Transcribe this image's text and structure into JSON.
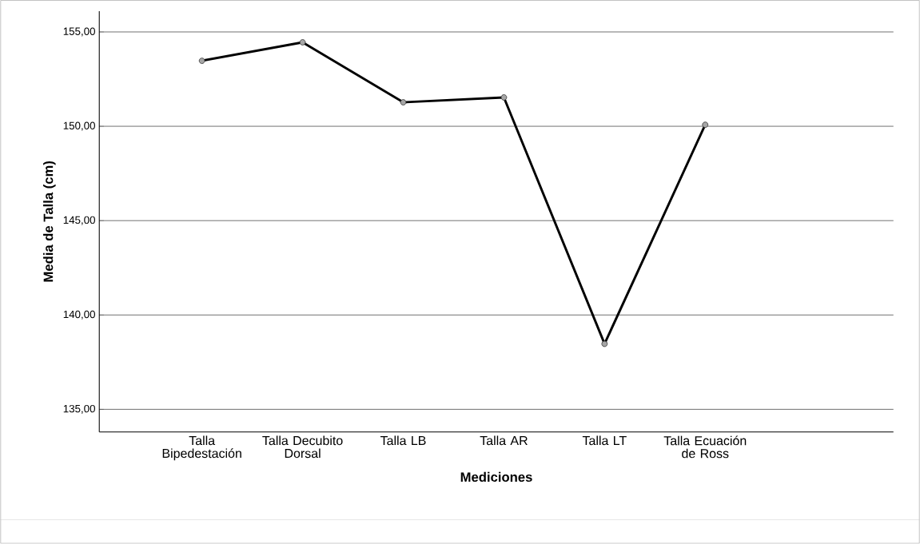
{
  "chart_data": {
    "type": "line",
    "xlabel": "Mediciones",
    "ylabel": "Media de Talla (cm)",
    "categories": [
      "Talla Bipedestación",
      "Talla Decubito Dorsal",
      "Talla LB",
      "Talla AR",
      "Talla LT",
      "Talla Ecuación de Ross"
    ],
    "series": [
      {
        "color": "#000000",
        "values": [
          153.47,
          154.45,
          151.27,
          151.53,
          138.47,
          150.08
        ]
      }
    ],
    "ylim": [
      133.8,
      156.1
    ],
    "yticks": [
      {
        "value": 135,
        "label": "135,00"
      },
      {
        "value": 140,
        "label": "140,00"
      },
      {
        "value": 145,
        "label": "145,00"
      },
      {
        "value": 150,
        "label": "150,00"
      },
      {
        "value": 155,
        "label": "155,00"
      }
    ],
    "grid": "y",
    "marker": "circle",
    "line_style": "solid"
  }
}
